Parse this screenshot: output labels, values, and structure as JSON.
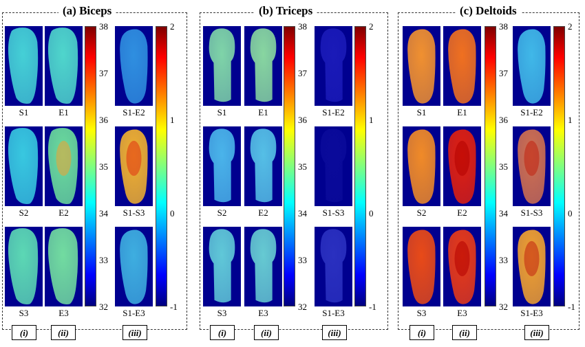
{
  "panels": [
    {
      "title": "(a) Biceps",
      "row_labels": [
        [
          "S1",
          "E1",
          "S1-E2"
        ],
        [
          "S2",
          "E2",
          "S1-S3"
        ],
        [
          "S3",
          "E3",
          "S1-E3"
        ]
      ],
      "thermal_scale": {
        "min": 32,
        "max": 38,
        "ticks": [
          "38",
          "37",
          "36",
          "35",
          "34",
          "33",
          "32"
        ]
      },
      "diff_scale": {
        "min": -1,
        "max": 2,
        "ticks": [
          "2",
          "1",
          "0",
          "-1"
        ]
      },
      "columns": [
        "(i)",
        "(ii)",
        "(iii)"
      ]
    },
    {
      "title": "(b) Triceps",
      "row_labels": [
        [
          "S1",
          "E1",
          "S1-E2"
        ],
        [
          "S2",
          "E2",
          "S1-S3"
        ],
        [
          "S3",
          "E3",
          "S1-E3"
        ]
      ],
      "thermal_scale": {
        "min": 32,
        "max": 38,
        "ticks": [
          "38",
          "37",
          "36",
          "35",
          "34",
          "33",
          "32"
        ]
      },
      "diff_scale": {
        "min": -1,
        "max": 2,
        "ticks": [
          "2",
          "1",
          "0",
          "-1"
        ]
      },
      "columns": [
        "(i)",
        "(ii)",
        "(iii)"
      ]
    },
    {
      "title": "(c) Deltoids",
      "row_labels": [
        [
          "S1",
          "E1",
          "S1-E2"
        ],
        [
          "S2",
          "E2",
          "S1-S3"
        ],
        [
          "S3",
          "E3",
          "S1-E3"
        ]
      ],
      "thermal_scale": {
        "min": 32,
        "max": 38,
        "ticks": [
          "38",
          "37",
          "36",
          "35",
          "34",
          "33",
          "32"
        ]
      },
      "diff_scale": {
        "min": -1,
        "max": 2,
        "ticks": [
          "2",
          "1",
          "0",
          "-1"
        ]
      },
      "columns": [
        "(i)",
        "(ii)",
        "(iii)"
      ]
    }
  ],
  "colors": {
    "background_navy": "#00008f",
    "border": "#333333"
  }
}
